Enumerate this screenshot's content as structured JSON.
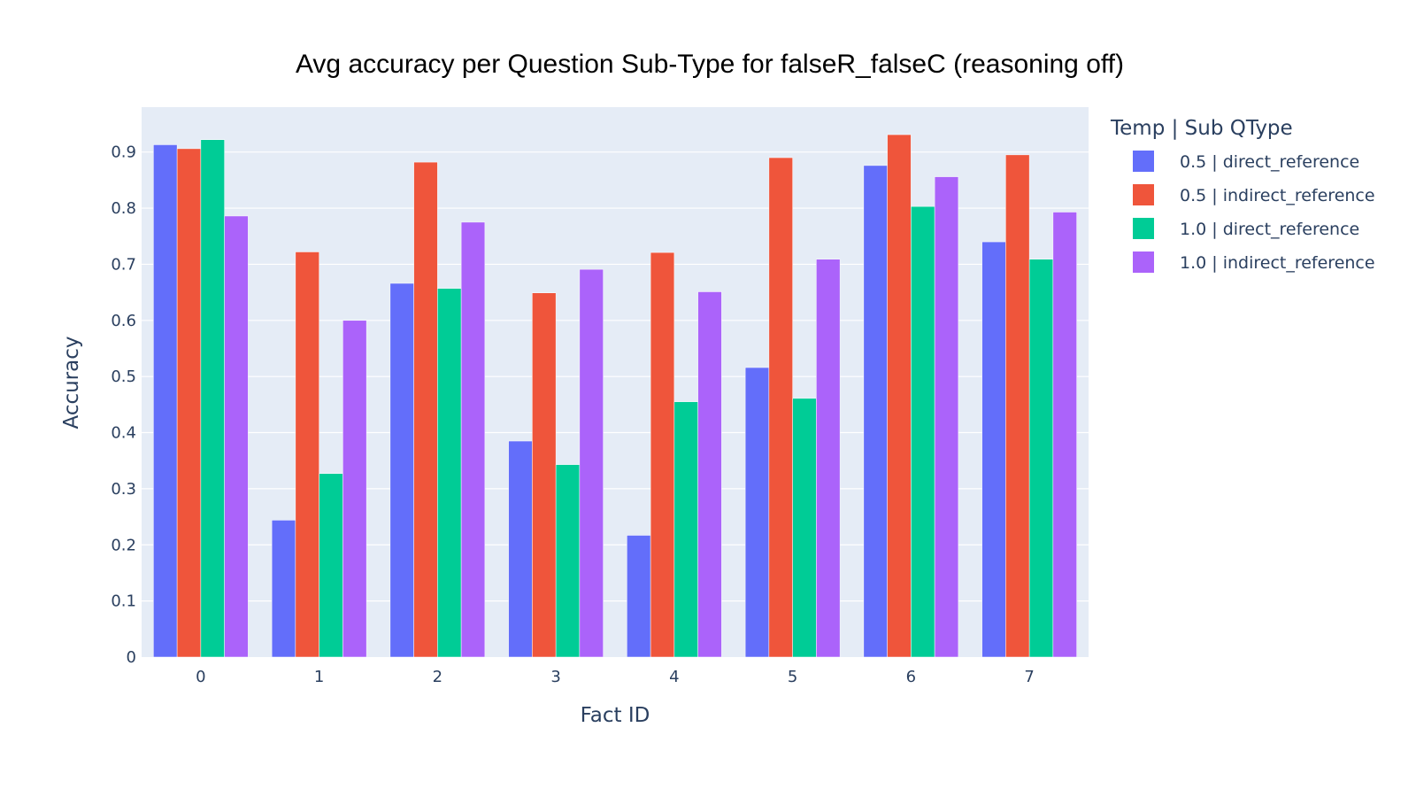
{
  "chart_data": {
    "type": "bar",
    "title": "Avg accuracy per Question Sub-Type for falseR_falseC (reasoning off)",
    "xlabel": "Fact ID",
    "ylabel": "Accuracy",
    "categories": [
      "0",
      "1",
      "2",
      "3",
      "4",
      "5",
      "6",
      "7"
    ],
    "ylim": [
      0,
      0.98
    ],
    "yticks": [
      0,
      0.1,
      0.2,
      0.3,
      0.4,
      0.5,
      0.6,
      0.7,
      0.8,
      0.9
    ],
    "ytick_labels": [
      "0",
      "0.1",
      "0.2",
      "0.3",
      "0.4",
      "0.5",
      "0.6",
      "0.7",
      "0.8",
      "0.9"
    ],
    "grid": true,
    "plot_background": "#e5ecf6",
    "legend": {
      "title": "Temp | Sub QType",
      "placement": "right"
    },
    "series": [
      {
        "name": "0.5 | direct_reference",
        "color": "#636efa",
        "values": [
          0.913,
          0.244,
          0.666,
          0.385,
          0.217,
          0.516,
          0.876,
          0.74
        ]
      },
      {
        "name": "0.5 | indirect_reference",
        "color": "#ef553b",
        "values": [
          0.906,
          0.722,
          0.882,
          0.649,
          0.721,
          0.89,
          0.931,
          0.895
        ]
      },
      {
        "name": "1.0 | direct_reference",
        "color": "#00cc96",
        "values": [
          0.922,
          0.327,
          0.657,
          0.343,
          0.455,
          0.461,
          0.803,
          0.709
        ]
      },
      {
        "name": "1.0 | indirect_reference",
        "color": "#ab63fa",
        "values": [
          0.786,
          0.6,
          0.775,
          0.691,
          0.651,
          0.709,
          0.856,
          0.793
        ]
      }
    ]
  }
}
